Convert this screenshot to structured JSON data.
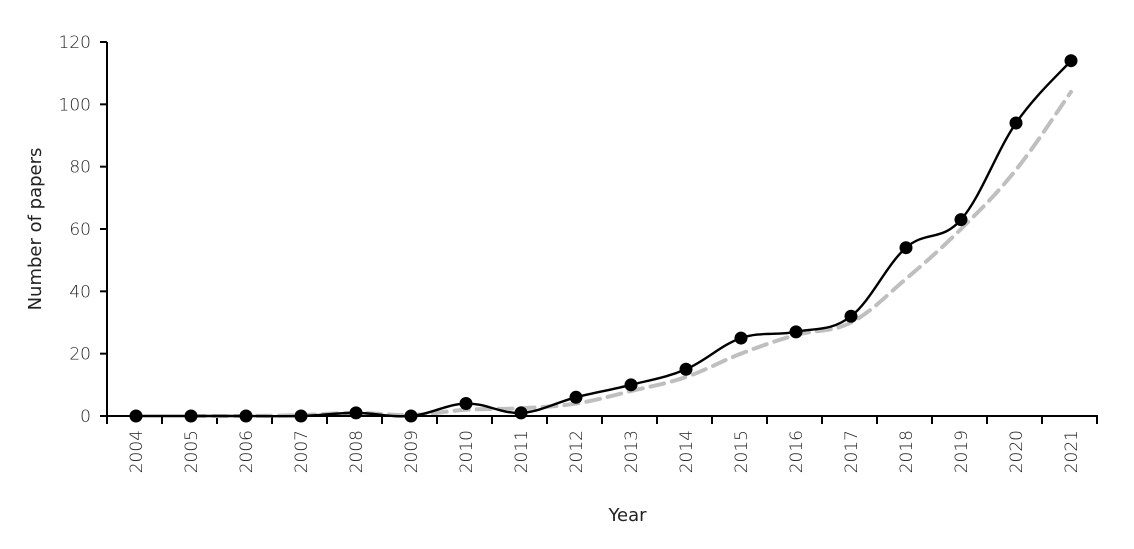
{
  "chart_data": {
    "type": "line",
    "title": "",
    "xlabel": "Year",
    "ylabel": "Number of papers",
    "categories": [
      "2004",
      "2005",
      "2006",
      "2007",
      "2008",
      "2009",
      "2010",
      "2011",
      "2012",
      "2013",
      "2014",
      "2015",
      "2016",
      "2017",
      "2018",
      "2019",
      "2020",
      "2021"
    ],
    "ylim": [
      0,
      120
    ],
    "yticks": [
      "0",
      "20",
      "40",
      "60",
      "80",
      "100",
      "120"
    ],
    "grid": false,
    "legend": "none",
    "series": [
      {
        "style": "solid-with-markers",
        "color": "#000000",
        "values": [
          0,
          0,
          0,
          0,
          1,
          0,
          4,
          1,
          6,
          10,
          15,
          25,
          27,
          32,
          54,
          63,
          94,
          114
        ]
      },
      {
        "style": "dashed-trend",
        "color": "#bfbfbf",
        "values": [
          null,
          0,
          0,
          0.3,
          1,
          0.3,
          2,
          2.5,
          4,
          8,
          12.5,
          20,
          26,
          30,
          44,
          60,
          79,
          104
        ]
      }
    ]
  }
}
